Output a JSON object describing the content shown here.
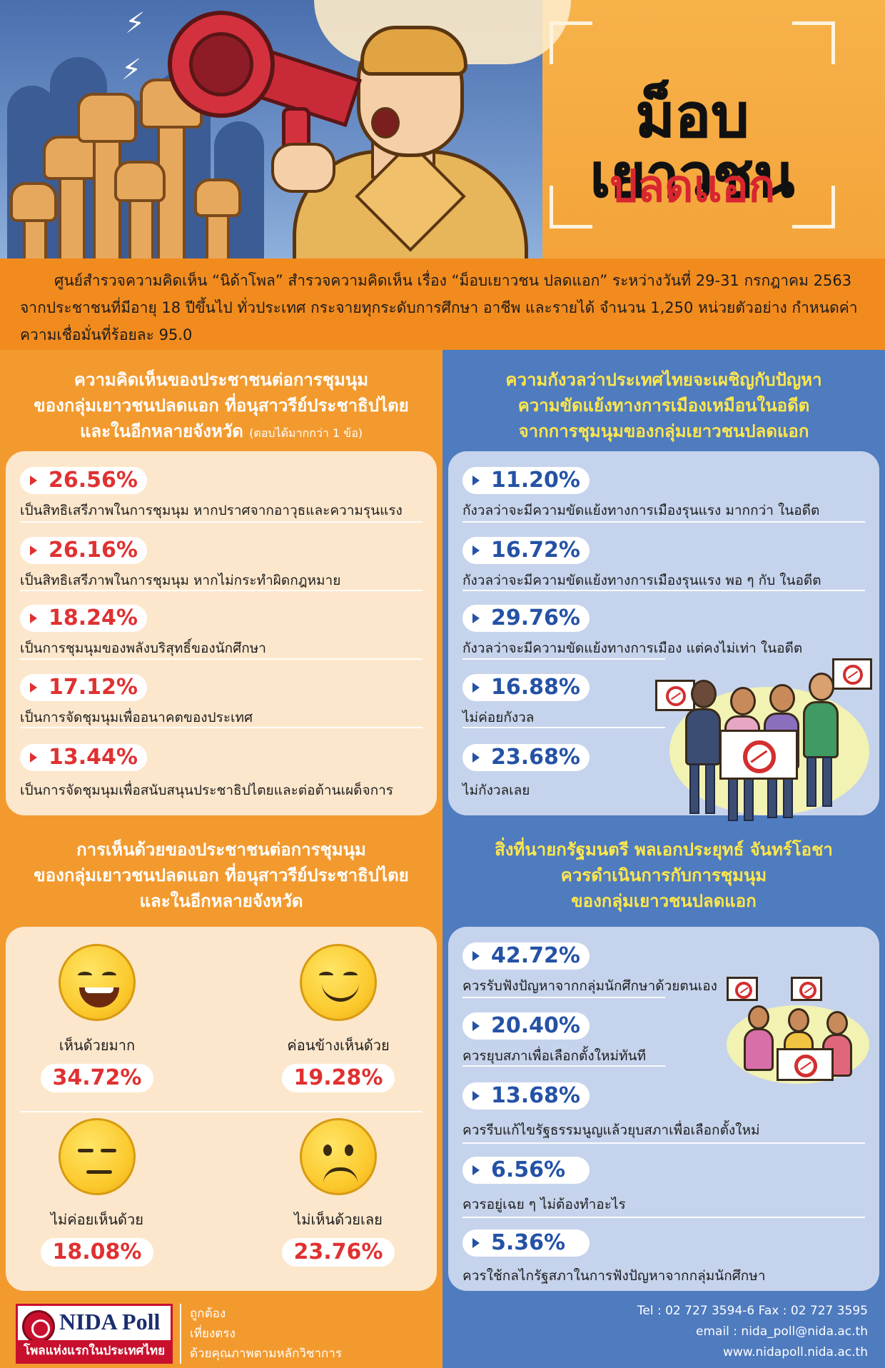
{
  "header": {
    "title": "ม็อบเยาวชน",
    "subtitle": "ปลดแอก"
  },
  "intro": {
    "text": "ศูนย์สำรวจความคิดเห็น “นิด้าโพล” สำรวจความคิดเห็น เรื่อง “ม็อบเยาวชน ปลดแอก” ระหว่างวันที่ 29-31 กรกฎาคม 2563 จากประชาชนที่มีอายุ 18 ปีขึ้นไป ทั่วประเทศ กระจายทุกระดับการศึกษา อาชีพ และรายได้ จำนวน 1,250 หน่วยตัวอย่าง กำหนดค่าความเชื่อมั่นที่ร้อยละ 95.0"
  },
  "opinion_section": {
    "title_line1": "ความคิดเห็นของประชาชนต่อการชุมนุม",
    "title_line2": "ของกลุ่มเยาวชนปลดแอก ที่อนุสาวรีย์ประชาธิปไตย",
    "title_line3": "และในอีกหลายจังหวัด",
    "note": "(ตอบได้มากกว่า 1 ข้อ)",
    "items": [
      {
        "pct": "26.56%",
        "text": "เป็นสิทธิเสรีภาพในการชุมนุม หากปราศจากอาวุธและความรุนแรง"
      },
      {
        "pct": "26.16%",
        "text": "เป็นสิทธิเสรีภาพในการชุมนุม หากไม่กระทำผิดกฎหมาย"
      },
      {
        "pct": "18.24%",
        "text": "เป็นการชุมนุมของพลังบริสุทธิ์ของนักศึกษา"
      },
      {
        "pct": "17.12%",
        "text": "เป็นการจัดชุมนุมเพื่ออนาคตของประเทศ"
      },
      {
        "pct": "13.44%",
        "text": "เป็นการจัดชุมนุมเพื่อสนับสนุนประชาธิปไตยและต่อต้านเผด็จการ"
      }
    ]
  },
  "agreement_section": {
    "title_line1": "การเห็นด้วยของประชาชนต่อการชุมนุม",
    "title_line2": "ของกลุ่มเยาวชนปลดแอก ที่อนุสาวรีย์ประชาธิปไตย",
    "title_line3": "และในอีกหลายจังหวัด",
    "items": [
      {
        "label": "เห็นด้วยมาก",
        "pct": "34.72%",
        "icon": "laughing-face-icon"
      },
      {
        "label": "ค่อนข้างเห็นด้วย",
        "pct": "19.28%",
        "icon": "smiling-face-icon"
      },
      {
        "label": "ไม่ค่อยเห็นด้วย",
        "pct": "18.08%",
        "icon": "neutral-face-icon"
      },
      {
        "label": "ไม่เห็นด้วยเลย",
        "pct": "23.76%",
        "icon": "sad-face-icon"
      }
    ]
  },
  "concern_section": {
    "title_line1": "ความกังวลว่าประเทศไทยจะเผชิญกับปัญหา",
    "title_line2": "ความขัดแย้งทางการเมืองเหมือนในอดีต",
    "title_line3": "จากการชุมนุมของกลุ่มเยาวชนปลดแอก",
    "items": [
      {
        "pct": "11.20%",
        "text": "กังวลว่าจะมีความขัดแย้งทางการเมืองรุนแรง มากกว่า ในอดีต"
      },
      {
        "pct": "16.72%",
        "text": "กังวลว่าจะมีความขัดแย้งทางการเมืองรุนแรง พอ ๆ กับ ในอดีต"
      },
      {
        "pct": "29.76%",
        "text": "กังวลว่าจะมีความขัดแย้งทางการเมือง แต่คงไม่เท่า ในอดีต"
      },
      {
        "pct": "16.88%",
        "text": "ไม่ค่อยกังวล"
      },
      {
        "pct": "23.68%",
        "text": "ไม่กังวลเลย"
      }
    ]
  },
  "pm_section": {
    "title_line1": "สิ่งที่นายกรัฐมนตรี พลเอกประยุทธ์ จันทร์โอชา",
    "title_line2": "ควรดำเนินการกับการชุมนุม",
    "title_line3": "ของกลุ่มเยาวชนปลดแอก",
    "items": [
      {
        "pct": "42.72%",
        "text": "ควรรับฟังปัญหาจากกลุ่มนักศึกษาด้วยตนเอง"
      },
      {
        "pct": "20.40%",
        "text": "ควรยุบสภาเพื่อเลือกตั้งใหม่ทันที"
      },
      {
        "pct": "13.68%",
        "text": "ควรรีบแก้ไขรัฐธรรมนูญแล้วยุบสภาเพื่อเลือกตั้งใหม่"
      },
      {
        "pct": "6.56%",
        "text": "ควรอยู่เฉย ๆ ไม่ต้องทำอะไร"
      },
      {
        "pct": "5.36%",
        "text": "ควรใช้กลไกรัฐสภาในการฟังปัญหาจากกลุ่มนักศึกษา"
      }
    ]
  },
  "footer": {
    "logo_name": "NIDA Poll",
    "logo_tagline": "โพลแห่งแรกในประเทศไทย",
    "mottos": [
      "ถูกต้อง",
      "เที่ยงตรง",
      "ด้วยคุณภาพตามหลักวิชาการ"
    ],
    "tel": "Tel : 02 727 3594-6 Fax : 02 727 3595",
    "email": "email : nida_poll@nida.ac.th",
    "website": "www.nidapoll.nida.ac.th"
  },
  "colors": {
    "orange": "#f39a2e",
    "blue": "#4f7bbf",
    "red_pct": "#e03131",
    "blue_pct": "#2452a6",
    "yellow_title": "#fde74c"
  }
}
